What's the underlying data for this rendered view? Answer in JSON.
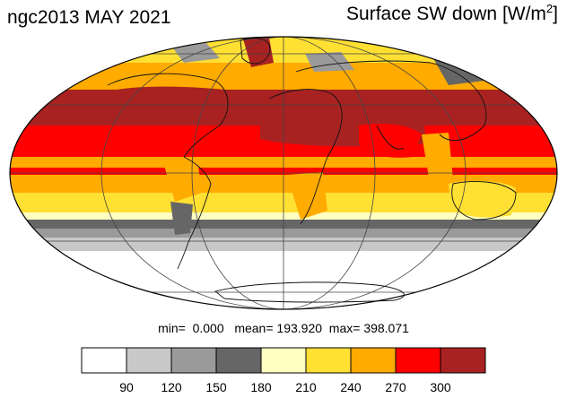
{
  "title": {
    "left": "ngc2013 MAY 2021",
    "right_main": "Surface SW down [W/m",
    "right_sup": "2",
    "right_end": "]"
  },
  "stats": {
    "min_label": "min=",
    "min_value": "0.000",
    "mean_label": "mean=",
    "mean_value": "193.920",
    "max_label": "max=",
    "max_value": "398.071"
  },
  "colorbar": {
    "colors": [
      "#ffffff",
      "#c8c8c8",
      "#9a9a9a",
      "#666666",
      "#ffffc2",
      "#ffe033",
      "#ffab00",
      "#ff0000",
      "#a82222"
    ],
    "ticks": [
      "90",
      "120",
      "150",
      "180",
      "210",
      "240",
      "270",
      "300"
    ]
  },
  "colors": {
    "sw_300_plus": "#a82222",
    "sw_270_300": "#ff0000",
    "sw_240_270": "#ffab00",
    "sw_210_240": "#ffe033",
    "sw_180_210": "#ffffc2",
    "sw_150_180": "#666666",
    "sw_120_150": "#9a9a9a",
    "sw_90_120": "#c8c8c8",
    "sw_below_90": "#ffffff"
  },
  "projection": "mollweide"
}
